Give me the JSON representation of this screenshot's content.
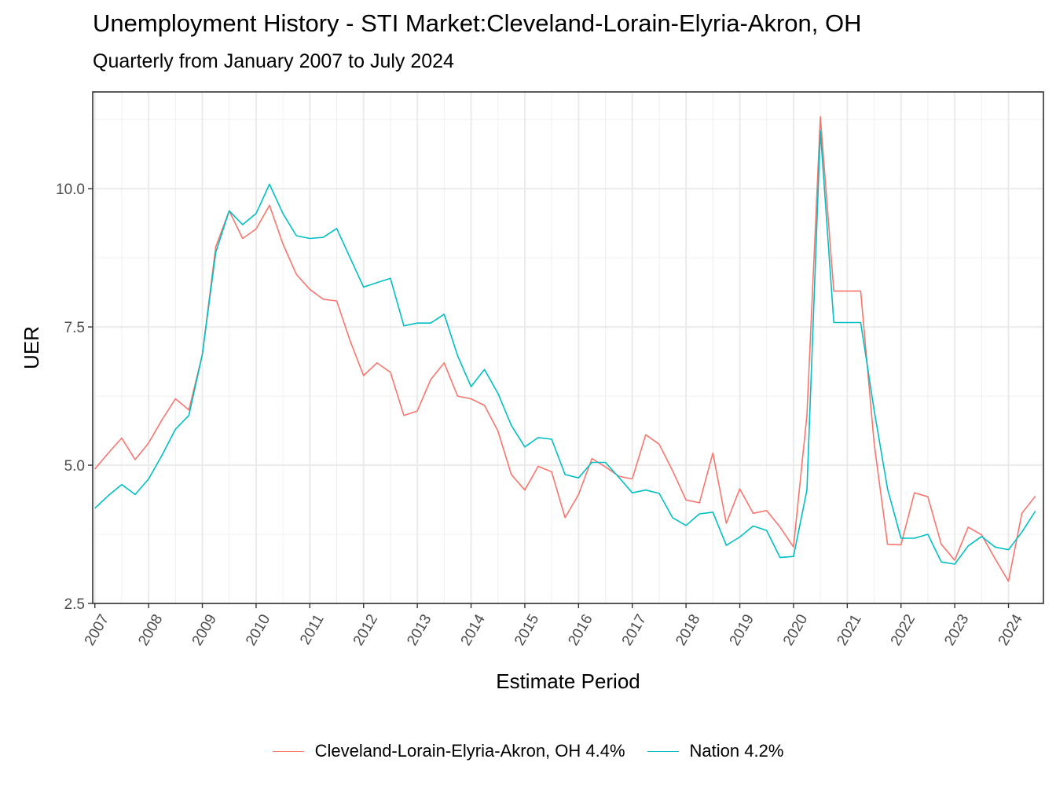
{
  "title": "Unemployment History - STI Market:Cleveland-Lorain-Elyria-Akron, OH",
  "subtitle": "Quarterly from January 2007 to July 2024",
  "chart_data": {
    "type": "line",
    "xlabel": "Estimate Period",
    "ylabel": "UER",
    "xlim": [
      2006.96,
      2024.65
    ],
    "ylim": [
      2.5,
      11.75
    ],
    "x_ticks": [
      2007,
      2008,
      2009,
      2010,
      2011,
      2012,
      2013,
      2014,
      2015,
      2016,
      2017,
      2018,
      2019,
      2020,
      2021,
      2022,
      2023,
      2024
    ],
    "y_ticks": [
      2.5,
      5.0,
      7.5,
      10.0
    ],
    "y_tick_labels": [
      "2.5",
      "5.0",
      "7.5",
      "10.0"
    ],
    "grid": true,
    "legend_position": "bottom",
    "x": [
      "2007-01",
      "2007-04",
      "2007-07",
      "2007-10",
      "2008-01",
      "2008-04",
      "2008-07",
      "2008-10",
      "2009-01",
      "2009-04",
      "2009-07",
      "2009-10",
      "2010-01",
      "2010-04",
      "2010-07",
      "2010-10",
      "2011-01",
      "2011-04",
      "2011-07",
      "2011-10",
      "2012-01",
      "2012-04",
      "2012-07",
      "2012-10",
      "2013-01",
      "2013-04",
      "2013-07",
      "2013-10",
      "2014-01",
      "2014-04",
      "2014-07",
      "2014-10",
      "2015-01",
      "2015-04",
      "2015-07",
      "2015-10",
      "2016-01",
      "2016-04",
      "2016-07",
      "2016-10",
      "2017-01",
      "2017-04",
      "2017-07",
      "2017-10",
      "2018-01",
      "2018-04",
      "2018-07",
      "2018-10",
      "2019-01",
      "2019-04",
      "2019-07",
      "2019-10",
      "2020-01",
      "2020-04",
      "2020-07",
      "2020-10",
      "2021-01",
      "2021-04",
      "2021-07",
      "2021-10",
      "2022-01",
      "2022-04",
      "2022-07",
      "2022-10",
      "2023-01",
      "2023-04",
      "2023-07",
      "2023-10",
      "2024-01",
      "2024-04",
      "2024-07"
    ],
    "series": [
      {
        "name": "Cleveland-Lorain-Elyria-Akron, OH 4.4%",
        "color": "#F8766D",
        "values": [
          4.93,
          5.22,
          5.49,
          5.1,
          5.4,
          5.82,
          6.2,
          6.0,
          7.0,
          8.95,
          9.6,
          9.1,
          9.27,
          9.7,
          9.0,
          8.45,
          8.18,
          8.0,
          7.97,
          7.25,
          6.62,
          6.85,
          6.68,
          5.9,
          5.98,
          6.55,
          6.85,
          6.25,
          6.2,
          6.08,
          5.62,
          4.83,
          4.55,
          4.98,
          4.88,
          4.05,
          4.47,
          5.12,
          4.97,
          4.8,
          4.75,
          5.55,
          5.38,
          4.9,
          4.37,
          4.32,
          5.22,
          3.95,
          4.57,
          4.13,
          4.18,
          3.88,
          3.52,
          5.9,
          11.3,
          8.15,
          8.15,
          8.15,
          5.4,
          3.57,
          3.56,
          4.5,
          4.43,
          3.57,
          3.28,
          3.88,
          3.74,
          3.31,
          2.9,
          4.13,
          4.44
        ]
      },
      {
        "name": "Nation 4.2%",
        "color": "#00BFC4",
        "values": [
          4.22,
          4.45,
          4.65,
          4.47,
          4.75,
          5.18,
          5.65,
          5.9,
          7.0,
          8.85,
          9.6,
          9.35,
          9.55,
          10.08,
          9.55,
          9.15,
          9.1,
          9.12,
          9.28,
          8.75,
          8.22,
          8.3,
          8.38,
          7.52,
          7.57,
          7.57,
          7.73,
          6.98,
          6.42,
          6.73,
          6.3,
          5.72,
          5.33,
          5.5,
          5.47,
          4.83,
          4.77,
          5.05,
          5.05,
          4.78,
          4.5,
          4.55,
          4.49,
          4.05,
          3.91,
          4.12,
          4.15,
          3.55,
          3.7,
          3.9,
          3.82,
          3.33,
          3.35,
          4.55,
          11.05,
          7.58,
          7.58,
          7.58,
          6.0,
          4.57,
          3.68,
          3.68,
          3.75,
          3.25,
          3.21,
          3.54,
          3.71,
          3.52,
          3.47,
          3.79,
          4.17
        ]
      }
    ]
  }
}
